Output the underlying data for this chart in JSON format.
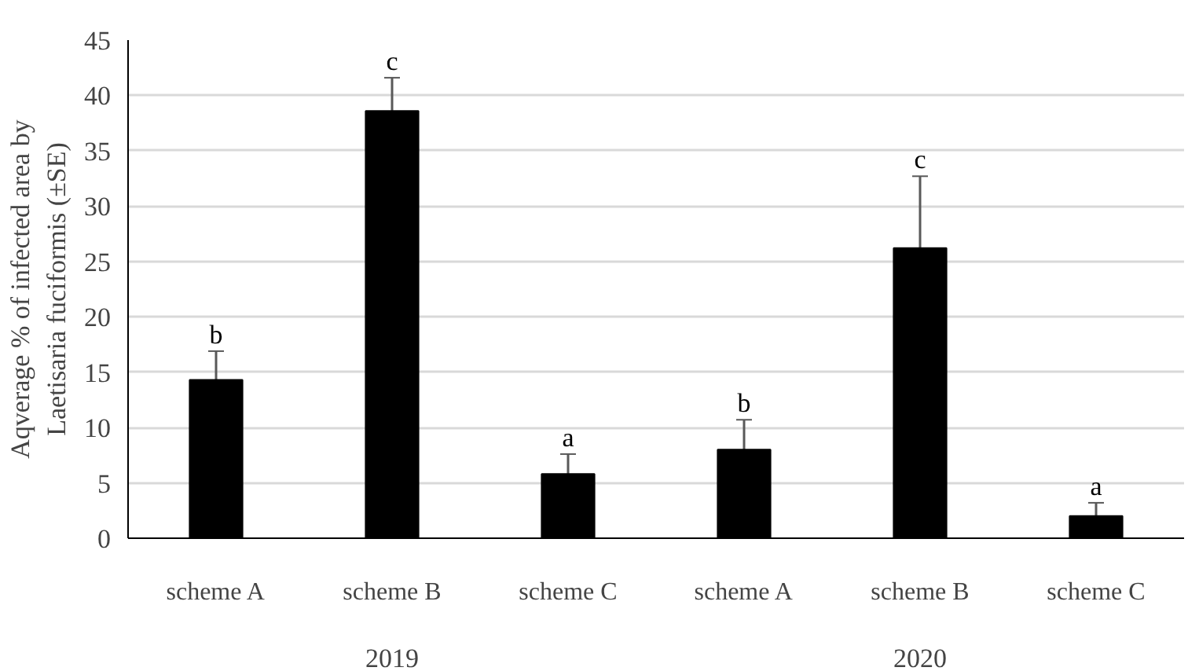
{
  "chart_data": {
    "type": "bar",
    "ylabel": "Aqverage % of infected area by\nLaetisaria fuciformis (±SE)",
    "categories": [
      "scheme A",
      "scheme B",
      "scheme C",
      "scheme A",
      "scheme B",
      "scheme C"
    ],
    "annotations": [
      "2019",
      "2020"
    ],
    "values": [
      14.3,
      38.6,
      5.8,
      8.0,
      26.2,
      2.0
    ],
    "errors": [
      [
        14.3,
        16.9
      ],
      [
        38.6,
        41.6
      ],
      [
        5.8,
        7.6
      ],
      [
        8.0,
        10.7
      ],
      [
        26.2,
        32.7
      ],
      [
        2.0,
        3.2
      ]
    ],
    "value_labels": [
      "b",
      "c",
      "a",
      "b",
      "c",
      "a"
    ],
    "color": "#000000",
    "ylim": [
      0,
      45
    ],
    "yticks": [
      0,
      5,
      10,
      15,
      20,
      25,
      30,
      35,
      40,
      45
    ],
    "grid": "y"
  }
}
